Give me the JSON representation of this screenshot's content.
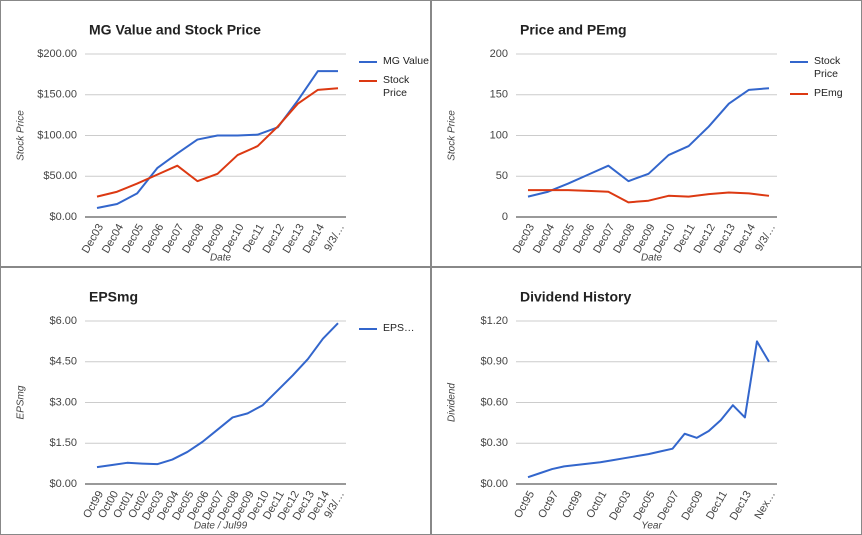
{
  "chart_data": [
    {
      "type": "line",
      "title": "MG Value and Stock Price",
      "x_label": "Date",
      "y_label": "Stock Price",
      "categories": [
        "Dec03",
        "Dec04",
        "Dec05",
        "Dec06",
        "Dec07",
        "Dec08",
        "Dec09",
        "Dec10",
        "Dec11",
        "Dec12",
        "Dec13",
        "Dec14",
        "9/3/…"
      ],
      "series": [
        {
          "name": "MG Value",
          "color": "#3366cc",
          "values": [
            11,
            16,
            29,
            60,
            78,
            95,
            100,
            100,
            101,
            110,
            143,
            179,
            179
          ]
        },
        {
          "name": "Stock Price",
          "color": "#dc3912",
          "values": [
            25,
            31,
            41,
            52,
            63,
            44,
            53,
            76,
            87,
            111,
            139,
            156,
            158
          ]
        }
      ],
      "ylim": [
        0,
        200
      ],
      "yticks": [
        {
          "value": 0,
          "label": "$0.00"
        },
        {
          "value": 50,
          "label": "$50.00"
        },
        {
          "value": 100,
          "label": "$100.00"
        },
        {
          "value": 150,
          "label": "$150.00"
        },
        {
          "value": 200,
          "label": "$200.00"
        }
      ],
      "grid": true,
      "legend": "right"
    },
    {
      "type": "line",
      "title": "Price and PEmg",
      "x_label": "Date",
      "y_label": "Stock Price",
      "categories": [
        "Dec03",
        "Dec04",
        "Dec05",
        "Dec06",
        "Dec07",
        "Dec08",
        "Dec09",
        "Dec10",
        "Dec11",
        "Dec12",
        "Dec13",
        "Dec14",
        "9/3/…"
      ],
      "series": [
        {
          "name": "Stock Price",
          "color": "#3366cc",
          "values": [
            25,
            31,
            41,
            52,
            63,
            44,
            53,
            76,
            87,
            111,
            139,
            156,
            158
          ]
        },
        {
          "name": "PEmg",
          "color": "#dc3912",
          "values": [
            33,
            33,
            33,
            32,
            31,
            18,
            20,
            26,
            25,
            28,
            30,
            29,
            26
          ]
        }
      ],
      "ylim": [
        0,
        200
      ],
      "yticks": [
        0,
        50,
        100,
        150,
        200
      ],
      "grid": true,
      "legend": "right"
    },
    {
      "type": "line",
      "title": "EPSmg",
      "x_label": "Date / Jul99",
      "y_label": "EPSmg",
      "categories": [
        "Oct99",
        "Oct00",
        "Oct01",
        "Oct02",
        "Dec03",
        "Dec04",
        "Dec05",
        "Dec06",
        "Dec07",
        "Dec08",
        "Dec09",
        "Dec10",
        "Dec11",
        "Dec12",
        "Dec13",
        "Dec14",
        "9/3/…"
      ],
      "series": [
        {
          "name": "EPS…",
          "color": "#3366cc",
          "values": [
            0.62,
            0.7,
            0.78,
            0.75,
            0.73,
            0.9,
            1.18,
            1.55,
            2.0,
            2.45,
            2.6,
            2.9,
            3.45,
            4.0,
            4.6,
            5.35,
            5.92
          ]
        }
      ],
      "ylim": [
        0,
        6
      ],
      "yticks": [
        {
          "value": 0,
          "label": "$0.00"
        },
        {
          "value": 1.5,
          "label": "$1.50"
        },
        {
          "value": 3,
          "label": "$3.00"
        },
        {
          "value": 4.5,
          "label": "$4.50"
        },
        {
          "value": 6,
          "label": "$6.00"
        }
      ],
      "grid": true,
      "legend": "right"
    },
    {
      "type": "line",
      "title": "Dividend History",
      "x_label": "Year",
      "y_label": "Dividend",
      "categories": [
        "Oct95",
        null,
        "Oct97",
        null,
        "Oct99",
        null,
        "Oct01",
        null,
        "Dec03",
        null,
        "Dec05",
        null,
        "Dec07",
        null,
        "Dec09",
        null,
        "Dec11",
        null,
        "Dec13",
        null,
        "Nex…"
      ],
      "series": [
        {
          "color": "#3366cc",
          "values": [
            0.05,
            0.08,
            0.11,
            0.13,
            0.14,
            0.15,
            0.16,
            0.175,
            0.19,
            0.205,
            0.22,
            0.24,
            0.26,
            0.37,
            0.34,
            0.39,
            0.47,
            0.58,
            0.49,
            1.05,
            0.9
          ]
        }
      ],
      "ylim": [
        0,
        1.2
      ],
      "yticks": [
        {
          "value": 0,
          "label": "$0.00"
        },
        {
          "value": 0.3,
          "label": "$0.30"
        },
        {
          "value": 0.6,
          "label": "$0.60"
        },
        {
          "value": 0.9,
          "label": "$0.90"
        },
        {
          "value": 1.2,
          "label": "$1.20"
        }
      ],
      "grid": true,
      "legend": "none"
    }
  ]
}
